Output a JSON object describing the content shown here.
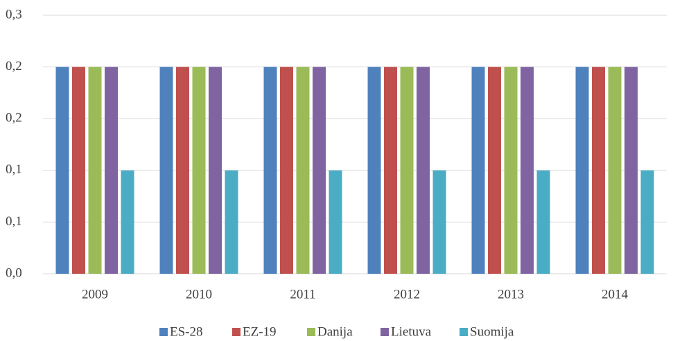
{
  "chart_data": {
    "type": "bar",
    "categories": [
      "2009",
      "2010",
      "2011",
      "2012",
      "2013",
      "2014"
    ],
    "series": [
      {
        "name": "ES-28",
        "color": "#4f81bd",
        "values": [
          0.24,
          0.24,
          0.24,
          0.24,
          0.24,
          0.24
        ]
      },
      {
        "name": "EZ-19",
        "color": "#c0504d",
        "values": [
          0.24,
          0.24,
          0.24,
          0.24,
          0.24,
          0.24
        ]
      },
      {
        "name": "Danija",
        "color": "#9bbb59",
        "values": [
          0.24,
          0.24,
          0.24,
          0.24,
          0.24,
          0.24
        ]
      },
      {
        "name": "Lietuva",
        "color": "#8064a2",
        "values": [
          0.24,
          0.24,
          0.24,
          0.24,
          0.24,
          0.24
        ]
      },
      {
        "name": "Suomija",
        "color": "#4bacc6",
        "values": [
          0.12,
          0.12,
          0.12,
          0.12,
          0.12,
          0.12
        ]
      }
    ],
    "ylim": [
      0,
      0.3
    ],
    "yticks": [
      {
        "value": 0,
        "label": "0,0"
      },
      {
        "value": 0.06,
        "label": "0,1"
      },
      {
        "value": 0.12,
        "label": "0,1"
      },
      {
        "value": 0.18,
        "label": "0,2"
      },
      {
        "value": 0.24,
        "label": "0,2"
      },
      {
        "value": 0.3,
        "label": "0,3"
      }
    ],
    "grid": true,
    "legend": "bottom"
  }
}
